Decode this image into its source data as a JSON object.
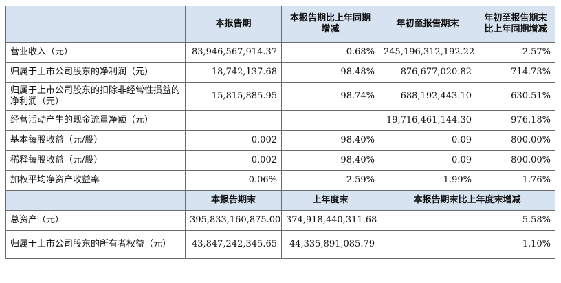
{
  "header": {
    "col1": "",
    "col2": "本报告期",
    "col3": "本报告期比上年同期增减",
    "col4": "年初至报告期末",
    "col5": "年初至报告期末比上年同期增减"
  },
  "rows": [
    {
      "label": "营业收入（元）",
      "v1": "83,946,567,914.37",
      "v2": "-0.68%",
      "v3": "245,196,312,192.22",
      "v4": "2.57%"
    },
    {
      "label": "归属于上市公司股东的净利润（元）",
      "v1": "18,742,137.68",
      "v2": "-98.48%",
      "v3": "876,677,020.82",
      "v4": "714.73%"
    },
    {
      "label": "归属于上市公司股东的扣除非经常性损益的净利润（元）",
      "v1": "15,815,885.95",
      "v2": "-98.74%",
      "v3": "688,192,443.10",
      "v4": "630.51%"
    },
    {
      "label": "经营活动产生的现金流量净额（元）",
      "v1": "—",
      "v2": "—",
      "v3": "19,716,461,144.30",
      "v4": "976.18%"
    },
    {
      "label": "基本每股收益（元/股）",
      "v1": "0.002",
      "v2": "-98.40%",
      "v3": "0.09",
      "v4": "800.00%"
    },
    {
      "label": "稀释每股收益（元/股）",
      "v1": "0.002",
      "v2": "-98.40%",
      "v3": "0.09",
      "v4": "800.00%"
    },
    {
      "label": "加权平均净资产收益率",
      "v1": "0.06%",
      "v2": "-2.59%",
      "v3": "1.99%",
      "v4": "1.76%"
    }
  ],
  "header2": {
    "col1": "",
    "col2": "本报告期末",
    "col3": "上年度末",
    "col4": "本报告期末比上年度末增减"
  },
  "rows2": [
    {
      "label": "总资产（元）",
      "v1": "395,833,160,875.00",
      "v2": "374,918,440,311.68",
      "v3": "5.58%"
    },
    {
      "label": "归属于上市公司股东的所有者权益（元）",
      "v1": "43,847,242,345.65",
      "v2": "44,335,891,085.79",
      "v3": "-1.10%"
    }
  ]
}
